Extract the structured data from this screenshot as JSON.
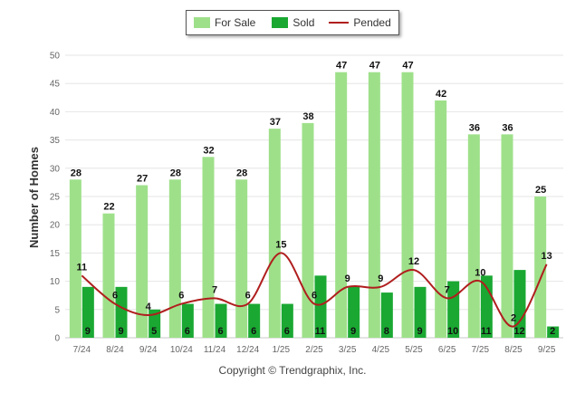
{
  "colors": {
    "for_sale": "#9ee08a",
    "sold": "#1aa832",
    "pended": "#b01e1e",
    "grid": "#e6e6e6",
    "axis_text": "#666666"
  },
  "legend": {
    "for_sale": "For Sale",
    "sold": "Sold",
    "pended": "Pended"
  },
  "footer": "Copyright © Trendgraphix, Inc.",
  "chart_data": {
    "type": "bar",
    "title": "",
    "xlabel": "",
    "ylabel": "Number of Homes",
    "ylim": [
      0,
      50
    ],
    "yticks": [
      0,
      5,
      10,
      15,
      20,
      25,
      30,
      35,
      40,
      45,
      50
    ],
    "legend_position": "top-center",
    "categories": [
      "7/24",
      "8/24",
      "9/24",
      "10/24",
      "11/24",
      "12/24",
      "1/25",
      "2/25",
      "3/25",
      "4/25",
      "5/25",
      "6/25",
      "7/25",
      "8/25",
      "9/25"
    ],
    "series": [
      {
        "name": "For Sale",
        "type": "bar",
        "values": [
          28,
          22,
          27,
          28,
          32,
          28,
          37,
          38,
          47,
          47,
          47,
          42,
          36,
          36,
          25
        ]
      },
      {
        "name": "Sold",
        "type": "bar",
        "values": [
          9,
          9,
          5,
          6,
          6,
          6,
          6,
          11,
          9,
          8,
          9,
          10,
          11,
          12,
          2
        ]
      },
      {
        "name": "Pended",
        "type": "line",
        "values": [
          11,
          6,
          4,
          6,
          7,
          6,
          15,
          6,
          9,
          9,
          12,
          7,
          10,
          2,
          13
        ]
      }
    ]
  }
}
